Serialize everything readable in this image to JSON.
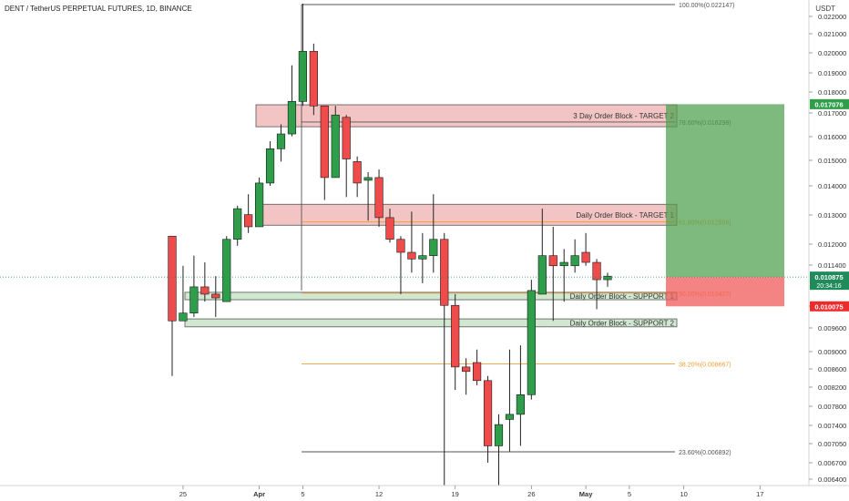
{
  "header": {
    "title": "DENT / TetherUS PERPETUAL FUTURES, 1D, BINANCE"
  },
  "axis": {
    "currency_label": "USDT",
    "y_ticks": [
      "0.022000",
      "0.021000",
      "0.020000",
      "0.019000",
      "0.018000",
      "0.017000",
      "0.016000",
      "0.015000",
      "0.014000",
      "0.013000",
      "0.012000",
      "0.011400",
      "0.010300",
      "0.009600",
      "0.009000",
      "0.008600",
      "0.008200",
      "0.007800",
      "0.007400",
      "0.007050",
      "0.006700",
      "0.006400"
    ],
    "x_ticks": [
      {
        "label": "25",
        "day": 5
      },
      {
        "label": "Apr",
        "day": 12
      },
      {
        "label": "5",
        "day": 16
      },
      {
        "label": "12",
        "day": 23
      },
      {
        "label": "19",
        "day": 30
      },
      {
        "label": "26",
        "day": 37
      },
      {
        "label": "May",
        "day": 42
      },
      {
        "label": "5",
        "day": 46
      },
      {
        "label": "10",
        "day": 51
      },
      {
        "label": "17",
        "day": 58
      }
    ]
  },
  "price_labels": {
    "target_price": "0.017076",
    "current_price": "0.010875",
    "countdown": "20:34:16",
    "stop_price": "0.010075",
    "colors": {
      "target": "#2e9e4a",
      "current": "#1f8a5a",
      "stop": "#ef2c2c"
    }
  },
  "fib_levels": [
    {
      "label": "100.00%(0.022147)",
      "price": 0.022147,
      "color": "#555555"
    },
    {
      "label": "78.60%(0.016298)",
      "price": 0.016298,
      "color": "#555555"
    },
    {
      "label": "61.80%(0.012558)",
      "price": 0.012558,
      "color": "#f39c3a"
    },
    {
      "label": "50.00%(0.010427)",
      "price": 0.010427,
      "color": "#f39c3a"
    },
    {
      "label": "38.20%(0.008667)",
      "price": 0.008667,
      "color": "#f39c3a"
    },
    {
      "label": "23.60%(0.006892)",
      "price": 0.006892,
      "color": "#555555"
    }
  ],
  "zones": [
    {
      "label": "3 Day Order Block - TARGET 2",
      "type": "target",
      "top": 0.01705,
      "bottom": 0.0161
    },
    {
      "label": "Daily Order Block - TARGET 1",
      "type": "target",
      "top": 0.01315,
      "bottom": 0.01245
    },
    {
      "label": "Daily Order Block - SUPPORT 1",
      "type": "support",
      "top": 0.01045,
      "bottom": 0.01025
    },
    {
      "label": "Daily Order Block - SUPPORT 2",
      "type": "support",
      "top": 0.00975,
      "bottom": 0.00955
    }
  ],
  "position": {
    "entry": 0.010875,
    "target": 0.017076,
    "stop": 0.010075,
    "start_day": 47,
    "end_day": 57
  },
  "chart_data": {
    "type": "candlestick",
    "title": "DENT / TetherUS PERPETUAL FUTURES, 1D, BINANCE",
    "y_scale": "log",
    "ylim": [
      0.0063,
      0.0225
    ],
    "colors": {
      "up": "#2e9e4a",
      "down": "#ef4b4b"
    },
    "candles": [
      {
        "day": 4,
        "o": 0.0121,
        "h": 0.0121,
        "l": 0.0084,
        "c": 0.0097
      },
      {
        "day": 5,
        "o": 0.0097,
        "h": 0.0112,
        "l": 0.0097,
        "c": 0.0099
      },
      {
        "day": 6,
        "o": 0.0099,
        "h": 0.0115,
        "l": 0.0098,
        "c": 0.0106
      },
      {
        "day": 7,
        "o": 0.0106,
        "h": 0.0113,
        "l": 0.0102,
        "c": 0.0104
      },
      {
        "day": 8,
        "o": 0.0104,
        "h": 0.0109,
        "l": 0.0098,
        "c": 0.0103
      },
      {
        "day": 9,
        "o": 0.0102,
        "h": 0.0121,
        "l": 0.0102,
        "c": 0.012
      },
      {
        "day": 10,
        "o": 0.012,
        "h": 0.0131,
        "l": 0.0118,
        "c": 0.013
      },
      {
        "day": 11,
        "o": 0.0128,
        "h": 0.0135,
        "l": 0.0122,
        "c": 0.0124
      },
      {
        "day": 12,
        "o": 0.0124,
        "h": 0.0141,
        "l": 0.0124,
        "c": 0.0139
      },
      {
        "day": 13,
        "o": 0.0139,
        "h": 0.0155,
        "l": 0.0138,
        "c": 0.0152
      },
      {
        "day": 14,
        "o": 0.0152,
        "h": 0.0162,
        "l": 0.0147,
        "c": 0.0158
      },
      {
        "day": 15,
        "o": 0.0158,
        "h": 0.0189,
        "l": 0.0157,
        "c": 0.0172
      },
      {
        "day": 16,
        "o": 0.0172,
        "h": 0.0222,
        "l": 0.017,
        "c": 0.0196
      },
      {
        "day": 17,
        "o": 0.0196,
        "h": 0.02,
        "l": 0.0166,
        "c": 0.017
      },
      {
        "day": 18,
        "o": 0.017,
        "h": 0.017,
        "l": 0.0133,
        "c": 0.0141
      },
      {
        "day": 19,
        "o": 0.0141,
        "h": 0.017,
        "l": 0.0141,
        "c": 0.0166
      },
      {
        "day": 20,
        "o": 0.0165,
        "h": 0.0166,
        "l": 0.0134,
        "c": 0.0148
      },
      {
        "day": 21,
        "o": 0.0147,
        "h": 0.0149,
        "l": 0.0134,
        "c": 0.0139
      },
      {
        "day": 22,
        "o": 0.014,
        "h": 0.0143,
        "l": 0.0126,
        "c": 0.0141
      },
      {
        "day": 23,
        "o": 0.0141,
        "h": 0.0144,
        "l": 0.0124,
        "c": 0.0127
      },
      {
        "day": 24,
        "o": 0.0127,
        "h": 0.013,
        "l": 0.0119,
        "c": 0.012
      },
      {
        "day": 25,
        "o": 0.012,
        "h": 0.0121,
        "l": 0.0104,
        "c": 0.0116
      },
      {
        "day": 26,
        "o": 0.0116,
        "h": 0.0129,
        "l": 0.011,
        "c": 0.0114
      },
      {
        "day": 27,
        "o": 0.0114,
        "h": 0.0122,
        "l": 0.0107,
        "c": 0.0115
      },
      {
        "day": 28,
        "o": 0.0115,
        "h": 0.0135,
        "l": 0.011,
        "c": 0.012
      },
      {
        "day": 29,
        "o": 0.012,
        "h": 0.0122,
        "l": 0.0063,
        "c": 0.0101
      },
      {
        "day": 30,
        "o": 0.0101,
        "h": 0.0104,
        "l": 0.0081,
        "c": 0.0086
      },
      {
        "day": 31,
        "o": 0.0086,
        "h": 0.0088,
        "l": 0.008,
        "c": 0.0085
      },
      {
        "day": 32,
        "o": 0.0087,
        "h": 0.009,
        "l": 0.0082,
        "c": 0.0083
      },
      {
        "day": 33,
        "o": 0.0083,
        "h": 0.0084,
        "l": 0.0067,
        "c": 0.007
      },
      {
        "day": 34,
        "o": 0.007,
        "h": 0.0076,
        "l": 0.0063,
        "c": 0.0074
      },
      {
        "day": 35,
        "o": 0.0075,
        "h": 0.009,
        "l": 0.0069,
        "c": 0.0076
      },
      {
        "day": 36,
        "o": 0.0076,
        "h": 0.0091,
        "l": 0.007,
        "c": 0.008
      },
      {
        "day": 37,
        "o": 0.008,
        "h": 0.0108,
        "l": 0.0079,
        "c": 0.0105
      },
      {
        "day": 38,
        "o": 0.0104,
        "h": 0.013,
        "l": 0.0104,
        "c": 0.0115
      },
      {
        "day": 39,
        "o": 0.0115,
        "h": 0.0124,
        "l": 0.0097,
        "c": 0.0112
      },
      {
        "day": 40,
        "o": 0.0112,
        "h": 0.0117,
        "l": 0.0102,
        "c": 0.0113
      },
      {
        "day": 41,
        "o": 0.0112,
        "h": 0.012,
        "l": 0.011,
        "c": 0.0115
      },
      {
        "day": 42,
        "o": 0.0116,
        "h": 0.0122,
        "l": 0.0112,
        "c": 0.0113
      },
      {
        "day": 43,
        "o": 0.0113,
        "h": 0.0114,
        "l": 0.01,
        "c": 0.0108
      },
      {
        "day": 44,
        "o": 0.0108,
        "h": 0.011,
        "l": 0.0106,
        "c": 0.0109
      }
    ]
  }
}
